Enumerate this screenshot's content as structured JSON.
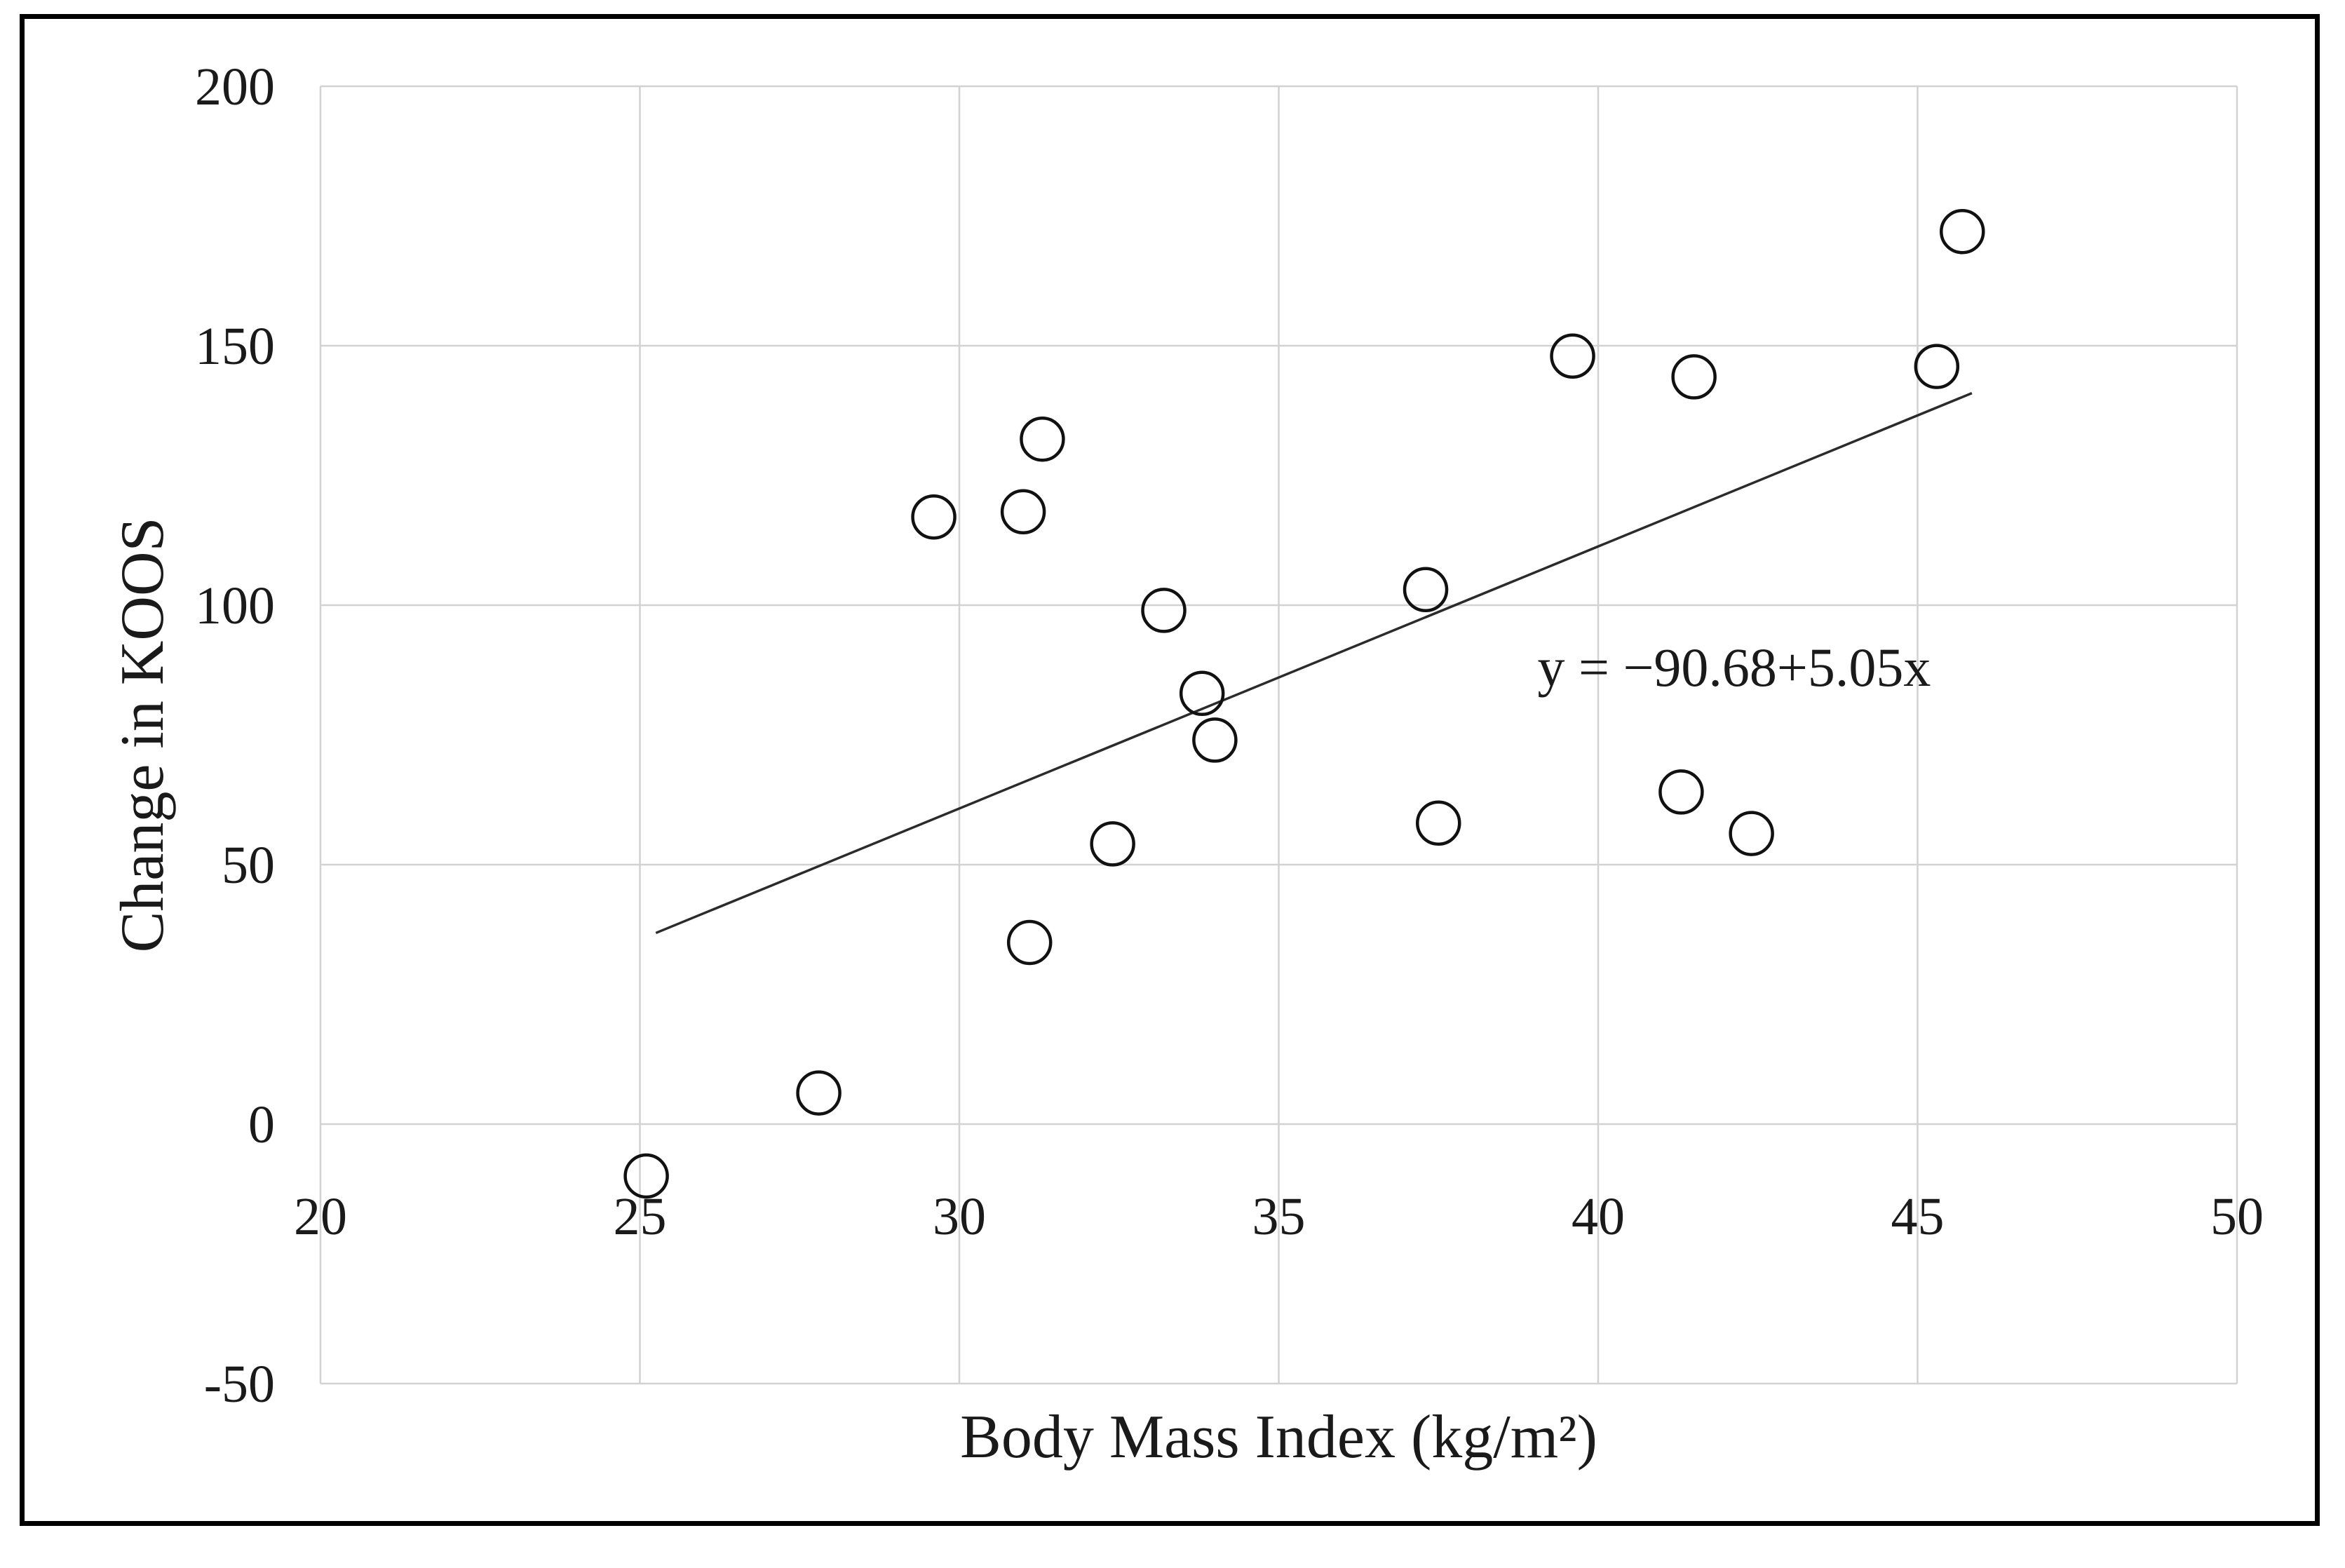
{
  "figure": {
    "background_color": "#ffffff",
    "border_color": "#000000"
  },
  "chart_data": {
    "type": "scatter",
    "title": "",
    "xlabel": "Body Mass Index (kg/m²)",
    "ylabel": "Change in KOOS",
    "xlim": [
      20,
      50
    ],
    "ylim": [
      -50,
      200
    ],
    "x_ticks": [
      20,
      25,
      30,
      35,
      40,
      45,
      50
    ],
    "y_ticks": [
      -50,
      0,
      50,
      100,
      150,
      200
    ],
    "grid": true,
    "legend": "none",
    "marker": {
      "shape": "open-circle",
      "stroke_color": "#111111",
      "fill": "none"
    },
    "points": [
      {
        "x": 25.1,
        "y": -10
      },
      {
        "x": 27.8,
        "y": 6
      },
      {
        "x": 29.6,
        "y": 117
      },
      {
        "x": 31.0,
        "y": 118
      },
      {
        "x": 31.3,
        "y": 132
      },
      {
        "x": 31.1,
        "y": 35
      },
      {
        "x": 32.4,
        "y": 54
      },
      {
        "x": 33.2,
        "y": 99
      },
      {
        "x": 33.8,
        "y": 83
      },
      {
        "x": 34.0,
        "y": 74
      },
      {
        "x": 37.3,
        "y": 103
      },
      {
        "x": 37.5,
        "y": 58
      },
      {
        "x": 39.6,
        "y": 148
      },
      {
        "x": 41.5,
        "y": 144
      },
      {
        "x": 41.3,
        "y": 64
      },
      {
        "x": 42.4,
        "y": 56
      },
      {
        "x": 45.3,
        "y": 146
      },
      {
        "x": 45.7,
        "y": 172
      }
    ],
    "trendline": {
      "label": "y = −90.68+5.05x",
      "intercept": -90.68,
      "slope": 5.05,
      "x_start": 25.25,
      "x_end": 45.85
    },
    "annotation": {
      "text": "y = −90.68+5.05x",
      "x": 39.05,
      "y": 88
    },
    "colors": {
      "gridline": "#d2d2d2",
      "trend_line": "#2b2b2b",
      "text": "#1a1a1a"
    }
  }
}
